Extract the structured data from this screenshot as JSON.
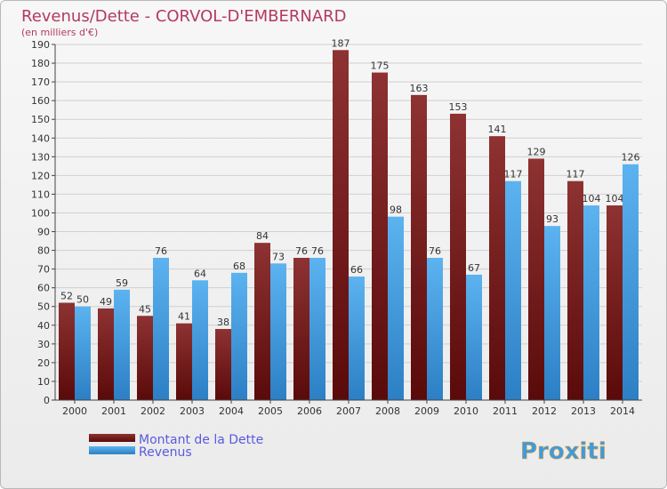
{
  "chart_data": {
    "type": "bar",
    "title": "Revenus/Dette - CORVOL-D'EMBERNARD",
    "subtitle": "(en milliers d'€)",
    "categories": [
      "2000",
      "2001",
      "2002",
      "2003",
      "2004",
      "2005",
      "2006",
      "2007",
      "2008",
      "2009",
      "2010",
      "2011",
      "2012",
      "2013",
      "2014"
    ],
    "series": [
      {
        "name": "Montant de la Dette",
        "color": "#8b1a1a",
        "values": [
          52,
          49,
          45,
          41,
          38,
          84,
          76,
          187,
          175,
          163,
          153,
          141,
          129,
          117,
          104
        ]
      },
      {
        "name": "Revenus",
        "color": "#3d9be0",
        "values": [
          50,
          59,
          76,
          64,
          68,
          73,
          76,
          66,
          98,
          76,
          67,
          117,
          93,
          104,
          126
        ]
      }
    ],
    "ylim": [
      0,
      190
    ],
    "ytick_step": 10,
    "grid": true,
    "legend": "bottom-left"
  },
  "brand": {
    "logo_text": "Proxiti"
  }
}
